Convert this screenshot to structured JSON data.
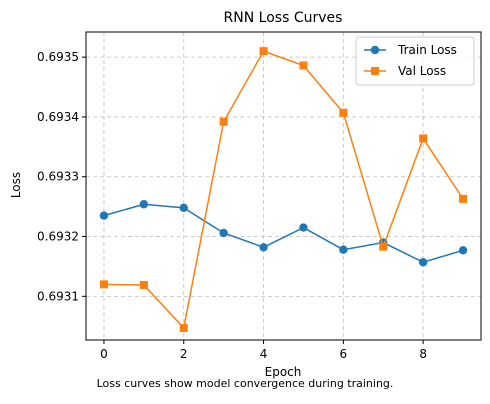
{
  "chart_data": {
    "type": "line",
    "title": "RNN Loss Curves",
    "xlabel": "Epoch",
    "ylabel": "Loss",
    "x": [
      0,
      1,
      2,
      3,
      4,
      5,
      6,
      7,
      8,
      9
    ],
    "xlim": [
      -0.45,
      9.45
    ],
    "ylim": [
      0.693027,
      0.693542
    ],
    "xticks": [
      0,
      2,
      4,
      6,
      8
    ],
    "xtick_labels": [
      "0",
      "2",
      "4",
      "6",
      "8"
    ],
    "yticks": [
      0.6931,
      0.6932,
      0.6933,
      0.6934,
      0.6935
    ],
    "ytick_labels": [
      "0.6931",
      "0.6932",
      "0.6933",
      "0.6934",
      "0.6935"
    ],
    "grid": true,
    "legend_position": "top-right",
    "series": [
      {
        "name": "Train Loss",
        "color": "#1f77b4",
        "marker": "circle",
        "values": [
          0.693235,
          0.693254,
          0.693248,
          0.693206,
          0.693182,
          0.693215,
          0.693178,
          0.69319,
          0.693157,
          0.693177
        ]
      },
      {
        "name": "Val Loss",
        "color": "#ff7f0e",
        "marker": "square",
        "values": [
          0.69312,
          0.693119,
          0.693047,
          0.693392,
          0.69351,
          0.693486,
          0.693407,
          0.693183,
          0.693364,
          0.693263
        ]
      }
    ]
  },
  "caption": "Loss curves show model convergence during training."
}
